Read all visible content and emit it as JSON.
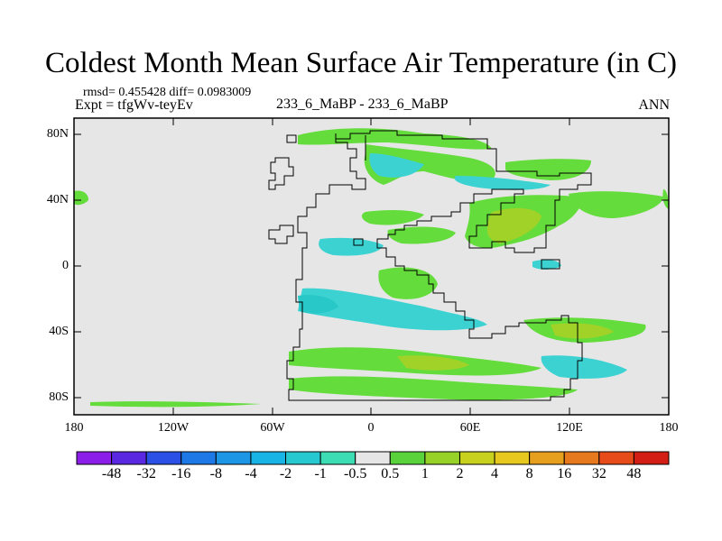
{
  "title": "Coldest Month Mean Surface Air Temperature (in C)",
  "stats": "rmsd= 0.455428  diff= 0.0983009",
  "expt": "Expt = tfgWv-teyEv",
  "center_label": "233_6_MaBP - 233_6_MaBP",
  "period": "ANN",
  "lat_labels": [
    "80N",
    "40N",
    "0",
    "40S",
    "80S"
  ],
  "lon_labels": [
    "180",
    "120W",
    "60W",
    "0",
    "60E",
    "120E",
    "180"
  ],
  "colorbar": {
    "labels": [
      "-48",
      "-32",
      "-16",
      "-8",
      "-4",
      "-2",
      "-1",
      "-0.5",
      "0.5",
      "1",
      "2",
      "4",
      "8",
      "16",
      "32",
      "48"
    ],
    "colors": [
      "#8b1ee8",
      "#5a28e0",
      "#2a50e6",
      "#1e78e6",
      "#1e96e6",
      "#19b4e6",
      "#28c8d0",
      "#3cdcb4",
      "#e6e6e6",
      "#5ad23c",
      "#96d228",
      "#c8d21e",
      "#e6c81e",
      "#e6a01e",
      "#e6781e",
      "#e64b19",
      "#d21e14"
    ]
  },
  "colors": {
    "land_bg": "#e6e6e6",
    "cyan": "#3cd2d2",
    "teal": "#28c8c8",
    "green": "#64dc3c",
    "lime": "#a0d228"
  }
}
